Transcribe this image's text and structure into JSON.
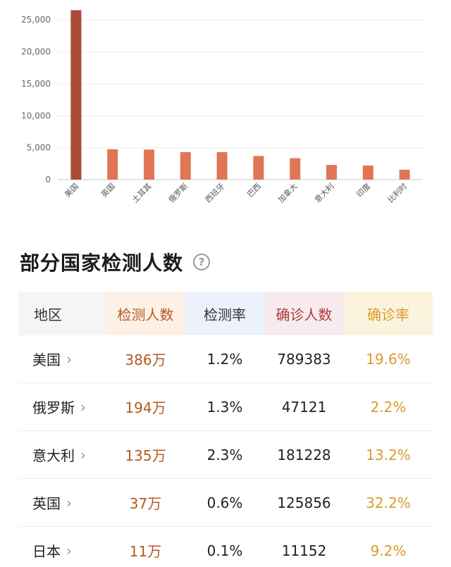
{
  "chart_data": {
    "type": "bar",
    "categories": [
      "美国",
      "英国",
      "土耳其",
      "俄罗斯",
      "西班牙",
      "巴西",
      "加拿大",
      "意大利",
      "印度",
      "比利时"
    ],
    "values": [
      26500,
      4750,
      4700,
      4300,
      4300,
      3700,
      3350,
      2300,
      2200,
      1550
    ],
    "y_ticks": [
      "0",
      "5,000",
      "10,000",
      "15,000",
      "20,000",
      "25,000"
    ],
    "ylim": [
      0,
      27000
    ],
    "grid": true,
    "colors": {
      "highlight": "#a84a34",
      "default": "#e07656"
    }
  },
  "section": {
    "title": "部分国家检测人数",
    "help_icon": "question-circle-icon"
  },
  "table": {
    "headers": [
      "地区",
      "检测人数",
      "检测率",
      "确诊人数",
      "确诊率"
    ],
    "rows": [
      {
        "region": "美国",
        "tested": "386万",
        "rate": "1.2%",
        "confirmed": "789383",
        "confirm_rate": "19.6%"
      },
      {
        "region": "俄罗斯",
        "tested": "194万",
        "rate": "1.3%",
        "confirmed": "47121",
        "confirm_rate": "2.2%"
      },
      {
        "region": "意大利",
        "tested": "135万",
        "rate": "2.3%",
        "confirmed": "181228",
        "confirm_rate": "13.2%"
      },
      {
        "region": "英国",
        "tested": "37万",
        "rate": "0.6%",
        "confirmed": "125856",
        "confirm_rate": "32.2%"
      },
      {
        "region": "日本",
        "tested": "11万",
        "rate": "0.1%",
        "confirmed": "11152",
        "confirm_rate": "9.2%"
      }
    ],
    "chevron": "›"
  }
}
